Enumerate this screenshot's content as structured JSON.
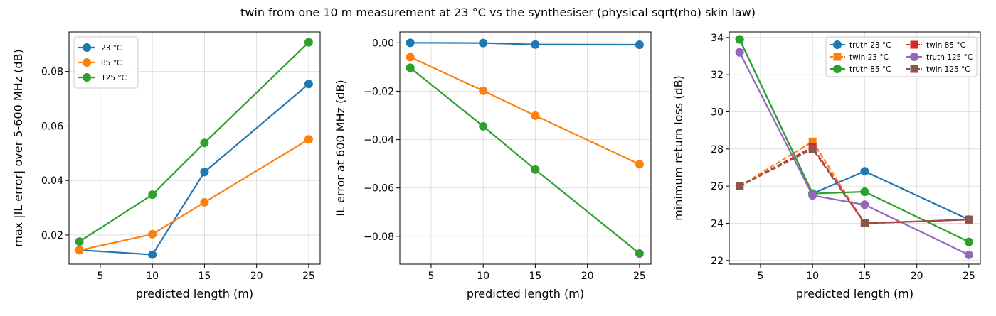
{
  "suptitle": "twin from one 10 m measurement at 23 °C vs the synthesiser (physical sqrt(rho) skin law)",
  "colors": {
    "blue": "#1f77b4",
    "orange": "#ff7f0e",
    "green": "#2ca02c",
    "red": "#d62728",
    "purple": "#9467bd",
    "brown": "#8c564b"
  },
  "chart_data": [
    {
      "type": "line",
      "xlabel": "predicted length (m)",
      "ylabel": "max |IL error| over 5-600 MHz (dB)",
      "xlim": [
        2,
        26.1
      ],
      "ylim": [
        0.0093,
        0.0945
      ],
      "xticks": [
        5,
        10,
        15,
        20,
        25
      ],
      "yticks": [
        0.02,
        0.04,
        0.06,
        0.08
      ],
      "ytick_labels": [
        "0.02",
        "0.04",
        "0.06",
        "0.08"
      ],
      "grid": true,
      "legend": "top-left",
      "x": [
        3,
        10,
        15,
        25
      ],
      "series": [
        {
          "name": "23 °C",
          "color": "blue",
          "marker": "circle",
          "dash": false,
          "values": [
            0.0145,
            0.0128,
            0.0431,
            0.0754
          ]
        },
        {
          "name": "85 °C",
          "color": "orange",
          "marker": "circle",
          "dash": false,
          "values": [
            0.0144,
            0.0203,
            0.032,
            0.0551
          ]
        },
        {
          "name": "125 °C",
          "color": "green",
          "marker": "circle",
          "dash": false,
          "values": [
            0.0176,
            0.0348,
            0.0538,
            0.0907
          ]
        }
      ]
    },
    {
      "type": "line",
      "xlabel": "predicted length (m)",
      "ylabel": "IL error at 600 MHz (dB)",
      "xlim": [
        2,
        26.1
      ],
      "ylim": [
        -0.0915,
        0.0045
      ],
      "xticks": [
        5,
        10,
        15,
        20,
        25
      ],
      "yticks": [
        0.0,
        -0.02,
        -0.04,
        -0.06,
        -0.08
      ],
      "ytick_labels": [
        "0.00",
        "−0.02",
        "−0.04",
        "−0.06",
        "−0.08"
      ],
      "grid": true,
      "legend": "none",
      "x": [
        3,
        10,
        15,
        25
      ],
      "series": [
        {
          "name": "",
          "color": "blue",
          "marker": "circle",
          "dash": false,
          "values": [
            0.0,
            -0.0001,
            -0.0007,
            -0.0008
          ]
        },
        {
          "name": "",
          "color": "orange",
          "marker": "circle",
          "dash": false,
          "values": [
            -0.0059,
            -0.0198,
            -0.0301,
            -0.0502
          ]
        },
        {
          "name": "",
          "color": "green",
          "marker": "circle",
          "dash": false,
          "values": [
            -0.0103,
            -0.0345,
            -0.0524,
            -0.0871
          ]
        }
      ]
    },
    {
      "type": "line",
      "xlabel": "predicted length (m)",
      "ylabel": "minimum return loss (dB)",
      "xlim": [
        2,
        26.1
      ],
      "ylim": [
        21.8,
        34.3
      ],
      "xticks": [
        5,
        10,
        15,
        20,
        25
      ],
      "yticks": [
        22,
        24,
        26,
        28,
        30,
        32,
        34
      ],
      "ytick_labels": [
        "22",
        "24",
        "26",
        "28",
        "30",
        "32",
        "34"
      ],
      "grid": true,
      "legend": "top-right",
      "x": [
        3,
        10,
        15,
        25
      ],
      "series": [
        {
          "name": "truth 23 °C",
          "color": "blue",
          "marker": "circle",
          "dash": false,
          "values": [
            33.9,
            25.6,
            26.8,
            24.2
          ]
        },
        {
          "name": "twin 23 °C",
          "color": "orange",
          "marker": "square",
          "dash": true,
          "values": [
            26.0,
            28.4,
            24.0,
            24.2
          ]
        },
        {
          "name": "truth 85 °C",
          "color": "green",
          "marker": "circle",
          "dash": false,
          "values": [
            33.9,
            25.6,
            25.7,
            23.0
          ]
        },
        {
          "name": "twin 85 °C",
          "color": "red",
          "marker": "square",
          "dash": true,
          "values": [
            26.0,
            28.1,
            24.0,
            24.2
          ]
        },
        {
          "name": "truth 125 °C",
          "color": "purple",
          "marker": "circle",
          "dash": false,
          "values": [
            33.2,
            25.5,
            25.0,
            22.3
          ]
        },
        {
          "name": "twin 125 °C",
          "color": "brown",
          "marker": "square",
          "dash": true,
          "values": [
            26.0,
            28.0,
            24.0,
            24.2
          ]
        }
      ]
    }
  ]
}
